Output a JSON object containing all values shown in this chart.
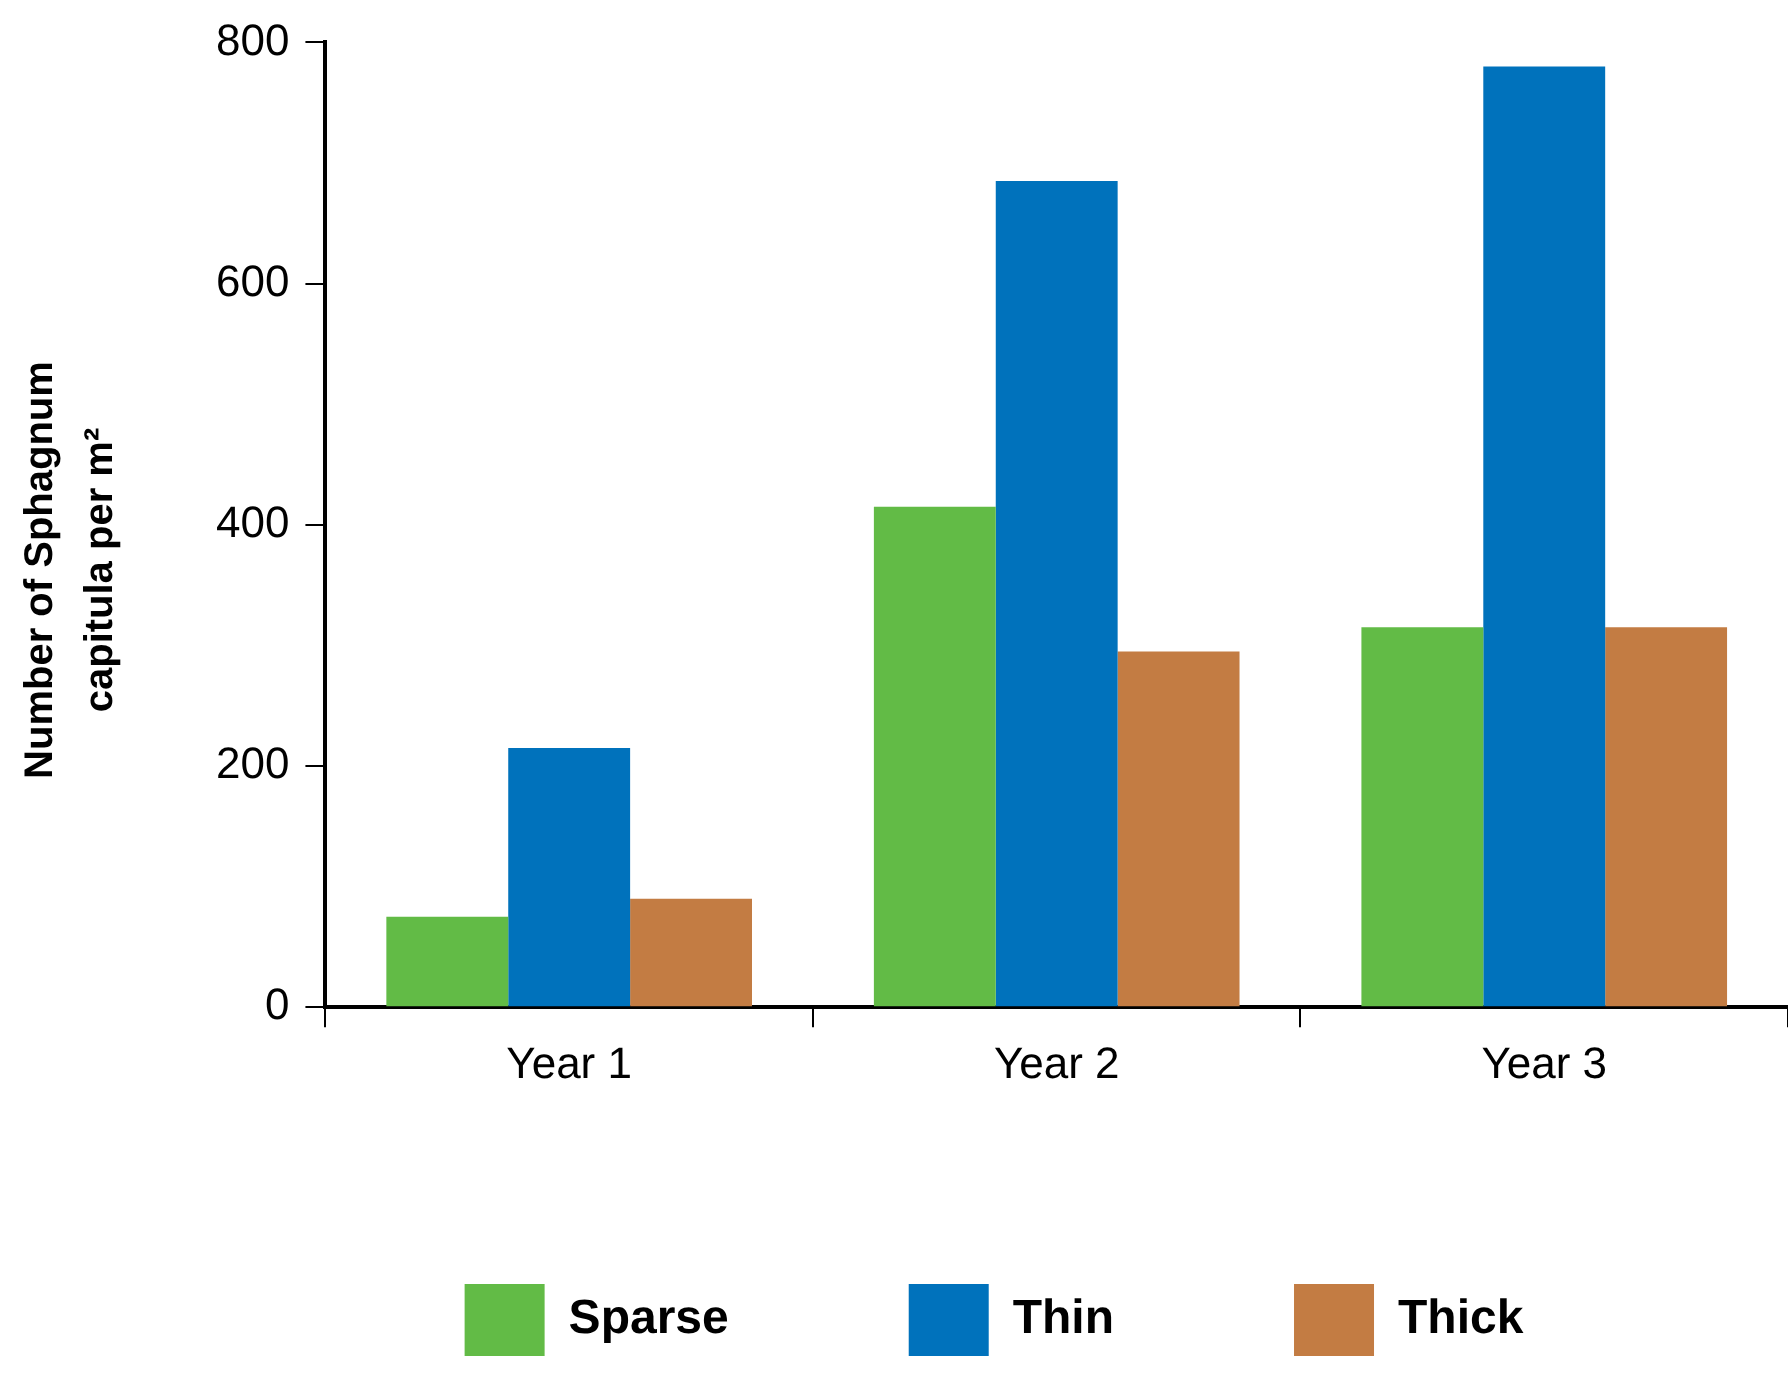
{
  "chart_data": {
    "type": "bar",
    "ylabel": "Number of Sphagnum capitula per m²",
    "categories": [
      "Year 1",
      "Year 2",
      "Year 3"
    ],
    "series": [
      {
        "name": "Sparse",
        "color": "#62bb46",
        "values": [
          75,
          415,
          315
        ]
      },
      {
        "name": "Thin",
        "color": "#0072bc",
        "values": [
          215,
          685,
          780
        ]
      },
      {
        "name": "Thick",
        "color": "#c37c43",
        "values": [
          90,
          295,
          315
        ]
      }
    ],
    "ylim": [
      0,
      800
    ],
    "yticks": [
      0,
      200,
      400,
      600,
      800
    ],
    "grid": false,
    "legend": "bottom"
  }
}
